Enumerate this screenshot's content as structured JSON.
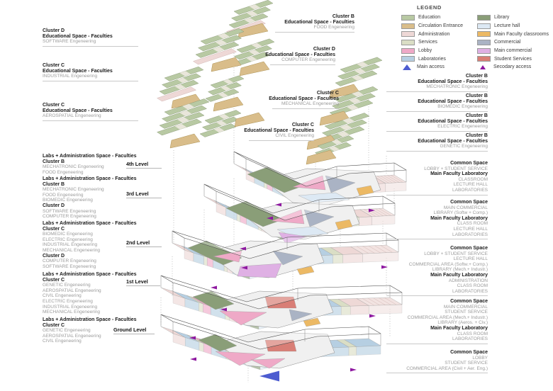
{
  "colors": {
    "education": "#b8c9a3",
    "circulation": "#d9bd8a",
    "administration": "#eed8d6",
    "services": "#dadec5",
    "lobby": "#efa9c7",
    "laboratories": "#b6cfe2",
    "library": "#8a9e78",
    "lecture_hall": "#dde9f4",
    "classrooms": "#ecb964",
    "commercial": "#aab3c4",
    "main_commercial": "#dfb0e4",
    "student_services": "#d97e76",
    "main_access": "#4d5cd0",
    "secondary_access": "#8e18a0"
  },
  "legend": {
    "title": "LEGEND",
    "col1": [
      {
        "label": "Education",
        "color_key": "education"
      },
      {
        "label": "Circulation Entrance",
        "color_key": "circulation"
      },
      {
        "label": "Administration",
        "color_key": "administration"
      },
      {
        "label": "Services",
        "color_key": "services"
      },
      {
        "label": "Lobby",
        "color_key": "lobby"
      },
      {
        "label": "Laboratories",
        "color_key": "laboratories"
      }
    ],
    "col2": [
      {
        "label": "Library",
        "color_key": "library"
      },
      {
        "label": "Lecture hall",
        "color_key": "lecture_hall"
      },
      {
        "label": "Main Faculty classrooms",
        "color_key": "classrooms"
      },
      {
        "label": "Commercial",
        "color_key": "commercial"
      },
      {
        "label": "Main commercial",
        "color_key": "main_commercial"
      },
      {
        "label": "Student Services",
        "color_key": "student_services"
      }
    ],
    "access": [
      {
        "label": "Main access",
        "color_key": "main_access"
      },
      {
        "label": "Secodary access",
        "color_key": "secondary_access"
      }
    ]
  },
  "left_top_groups": [
    {
      "cluster": "Cluster D",
      "title": "Educational Space - Faculties",
      "sub": "SOFTWARE Engeneering"
    },
    {
      "cluster": "Cluster C",
      "title": "Educational Space - Faculties",
      "sub": "INDUSTRIAL Engeneering"
    },
    {
      "cluster": "Cluster C",
      "title": "Educational Space - Faculties",
      "sub": "AEROSPATIAL Engeneering"
    }
  ],
  "center_groups": [
    {
      "cluster": "Cluster B",
      "title": "Educational Space - Faculties",
      "sub": "FOOD Engeneering"
    },
    {
      "cluster": "Cluster D",
      "title": "Educational Space - Faculties",
      "sub": "COMPUTER Engeneering"
    },
    {
      "cluster": "Cluster C",
      "title": "Educational Space - Faculties",
      "sub": "MECHANICAL Engeneering"
    },
    {
      "cluster": "Cluster C",
      "title": "Educational Space - Faculties",
      "sub": "CIVIL Engeneering"
    }
  ],
  "right_cluster_groups": [
    {
      "cluster": "Cluster B",
      "title": "Educational Space - Faculties",
      "sub": "MECHATRONIC Engeneering"
    },
    {
      "cluster": "Cluster B",
      "title": "Educational Space - Faculties",
      "sub": "BIOMEDIC Engeneering"
    },
    {
      "cluster": "Cluster B",
      "title": "Educational Space - Faculties",
      "sub": "ELECTRIC Engeneering"
    },
    {
      "cluster": "Cluster B",
      "title": "Educational Space - Faculties",
      "sub": "GENETIC Engeneering"
    }
  ],
  "left_level_groups": [
    {
      "title": "Labs + Administration Space - Faculties",
      "level": "4th Level",
      "lines": [
        {
          "t": "Cluster B",
          "b": true
        },
        {
          "t": "MECHATRONIC Engeneering"
        },
        {
          "t": "FOOD Engeneering"
        }
      ]
    },
    {
      "title": "Labs + Administration Space - Faculties",
      "level": "3rd Level",
      "lines": [
        {
          "t": "Cluster B",
          "b": true
        },
        {
          "t": "MECHATRONIC Engeneering"
        },
        {
          "t": "FOOD Engeneering"
        },
        {
          "t": "BIOMEDIC Engeneering"
        },
        {
          "t": "Cluster D",
          "b": true
        },
        {
          "t": "SOFTWARE Engeneering"
        },
        {
          "t": "COMPUTER Engeneering"
        }
      ]
    },
    {
      "title": "Labs + Administration Space - Faculties",
      "level": "2nd Level",
      "lines": [
        {
          "t": "Cluster C",
          "b": true
        },
        {
          "t": "BIOMEDIC Engeneering"
        },
        {
          "t": "ELECTRIC Engeneering"
        },
        {
          "t": "INDUSTRIAL Engeneering"
        },
        {
          "t": "MECHANICAL Engeneering"
        },
        {
          "t": "Cluster D",
          "b": true
        },
        {
          "t": "COMPUTER Engeneering"
        },
        {
          "t": "SOFTWARE Engeneering"
        }
      ]
    },
    {
      "title": "Labs + Administration Space - Faculties",
      "level": "1st Level",
      "lines": [
        {
          "t": "Cluster C",
          "b": true
        },
        {
          "t": "GENETIC Engeneering"
        },
        {
          "t": "AEROSPATIAL Engeneering"
        },
        {
          "t": "CIVIL Engeneering"
        },
        {
          "t": "ELECTRIC Engeneering"
        },
        {
          "t": "INDUSTRIAL Engeneering"
        },
        {
          "t": "MECHANICAL Engeneering"
        }
      ]
    },
    {
      "title": "Labs + Administration Space - Faculties",
      "level": "Ground Level",
      "lines": [
        {
          "t": "Cluster C",
          "b": true
        },
        {
          "t": "GENETIC Engeneering"
        },
        {
          "t": "AEROSPATIAL Engeneering"
        },
        {
          "t": "CIVIL Engeneering"
        }
      ]
    }
  ],
  "right_common_groups": [
    {
      "lines": [
        {
          "t": "Common Space",
          "b": true
        },
        {
          "t": "LOBBY + STUDENT SERVICE"
        },
        {
          "t": "Main Faculty Laboratory",
          "b": true
        },
        {
          "t": "CLASSROOM"
        },
        {
          "t": "LECTURE HALL"
        },
        {
          "t": "LABORATORIES"
        }
      ]
    },
    {
      "lines": [
        {
          "t": "Common Space",
          "b": true
        },
        {
          "t": "MAIN COMMERCIAL"
        },
        {
          "t": "LIBRARY (Softw + Comp.)"
        },
        {
          "t": "Main Faculty Laboratory",
          "b": true
        },
        {
          "t": "CLASS ROOM"
        },
        {
          "t": "LECTURE HALL"
        },
        {
          "t": "LABORATORIES"
        }
      ]
    },
    {
      "lines": [
        {
          "t": "Common Space",
          "b": true
        },
        {
          "t": "LOBBY + STUDENT SERVICE"
        },
        {
          "t": "LECTURE HALL"
        },
        {
          "t": "COMMERCIAL AREA (Softw.+ Comp.)"
        },
        {
          "t": "LIBRARY (Mech.+ Industr.)"
        },
        {
          "t": "Main Faculty Laboratory",
          "b": true
        },
        {
          "t": "ADMINISTRATION"
        },
        {
          "t": "CLASS ROOM"
        },
        {
          "t": "LABORATORIES"
        }
      ]
    },
    {
      "lines": [
        {
          "t": "Common Space",
          "b": true
        },
        {
          "t": "MAIN COMMERCIAL"
        },
        {
          "t": "STUDENT SERVICE"
        },
        {
          "t": "COMMERCIAL AREA (Mech.+ Industr.)"
        },
        {
          "t": "LIBRARY (Aeros. + Civ.)"
        },
        {
          "t": "Main Faculty Laboratory",
          "b": true
        },
        {
          "t": "CLASS ROOM"
        },
        {
          "t": "LABORATORIES"
        }
      ]
    },
    {
      "lines": [
        {
          "t": "Common Space",
          "b": true
        },
        {
          "t": "LOBBY"
        },
        {
          "t": "STUDENT SERVICE"
        },
        {
          "t": "COMMERCIAL AREA (Civil + Aer. Eng.)"
        }
      ]
    }
  ]
}
